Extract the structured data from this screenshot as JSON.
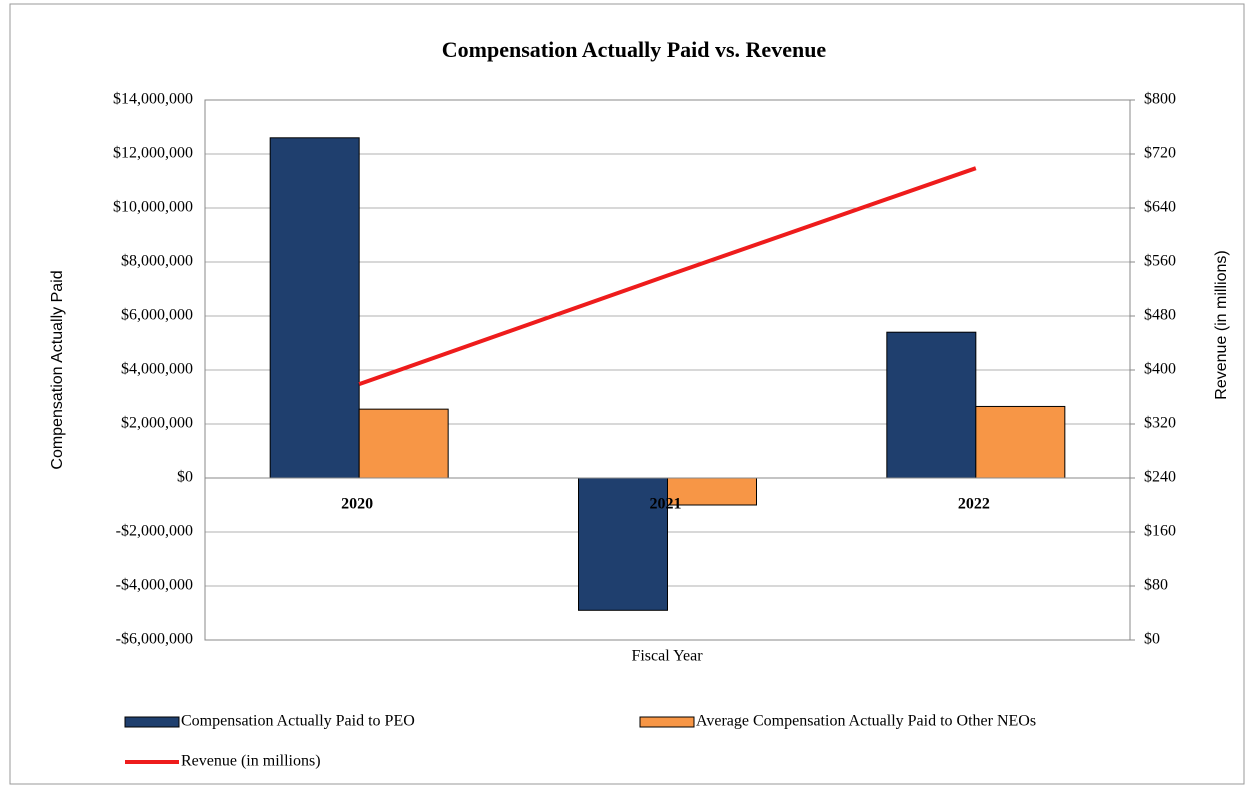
{
  "chart_data": {
    "type": "bar",
    "title": "Compensation Actually Paid vs. Revenue",
    "x_label": "Fiscal Year",
    "y_label": "Compensation  Actually Paid",
    "y2_label": "Revenue (in millions)",
    "categories": [
      "2020",
      "2021",
      "2022"
    ],
    "series": [
      {
        "name": "Compensation Actually Paid to PEO",
        "color": "#1f3f6e",
        "values": [
          12600000,
          -4900000,
          5400000
        ]
      },
      {
        "name": "Average Compensation Actually Paid to Other NEOs",
        "color": "#f79646",
        "values": [
          2550000,
          -1000000,
          2650000
        ]
      },
      {
        "name": "Revenue (in millions)",
        "color": "#ee1c1c",
        "type": "line",
        "axis": "y2",
        "values": [
          379,
          540,
          699
        ]
      }
    ],
    "ylim": [
      -6000000,
      14000000
    ],
    "yticks": [
      {
        "value": -6000000,
        "label": "-$6,000,000"
      },
      {
        "value": -4000000,
        "label": "-$4,000,000"
      },
      {
        "value": -2000000,
        "label": "-$2,000,000"
      },
      {
        "value": 0,
        "label": "$0"
      },
      {
        "value": 2000000,
        "label": "$2,000,000"
      },
      {
        "value": 4000000,
        "label": "$4,000,000"
      },
      {
        "value": 6000000,
        "label": "$6,000,000"
      },
      {
        "value": 8000000,
        "label": "$8,000,000"
      },
      {
        "value": 10000000,
        "label": "$10,000,000"
      },
      {
        "value": 12000000,
        "label": "$12,000,000"
      },
      {
        "value": 14000000,
        "label": "$14,000,000"
      }
    ],
    "y2lim": [
      0,
      800
    ],
    "y2ticks": [
      {
        "value": 0,
        "label": "$0"
      },
      {
        "value": 80,
        "label": "$80"
      },
      {
        "value": 160,
        "label": "$160"
      },
      {
        "value": 240,
        "label": "$240"
      },
      {
        "value": 320,
        "label": "$320"
      },
      {
        "value": 400,
        "label": "$400"
      },
      {
        "value": 480,
        "label": "$480"
      },
      {
        "value": 560,
        "label": "$560"
      },
      {
        "value": 640,
        "label": "$640"
      },
      {
        "value": 720,
        "label": "$720"
      },
      {
        "value": 800,
        "label": "$800"
      }
    ],
    "grid": true,
    "legend": "bottom"
  }
}
